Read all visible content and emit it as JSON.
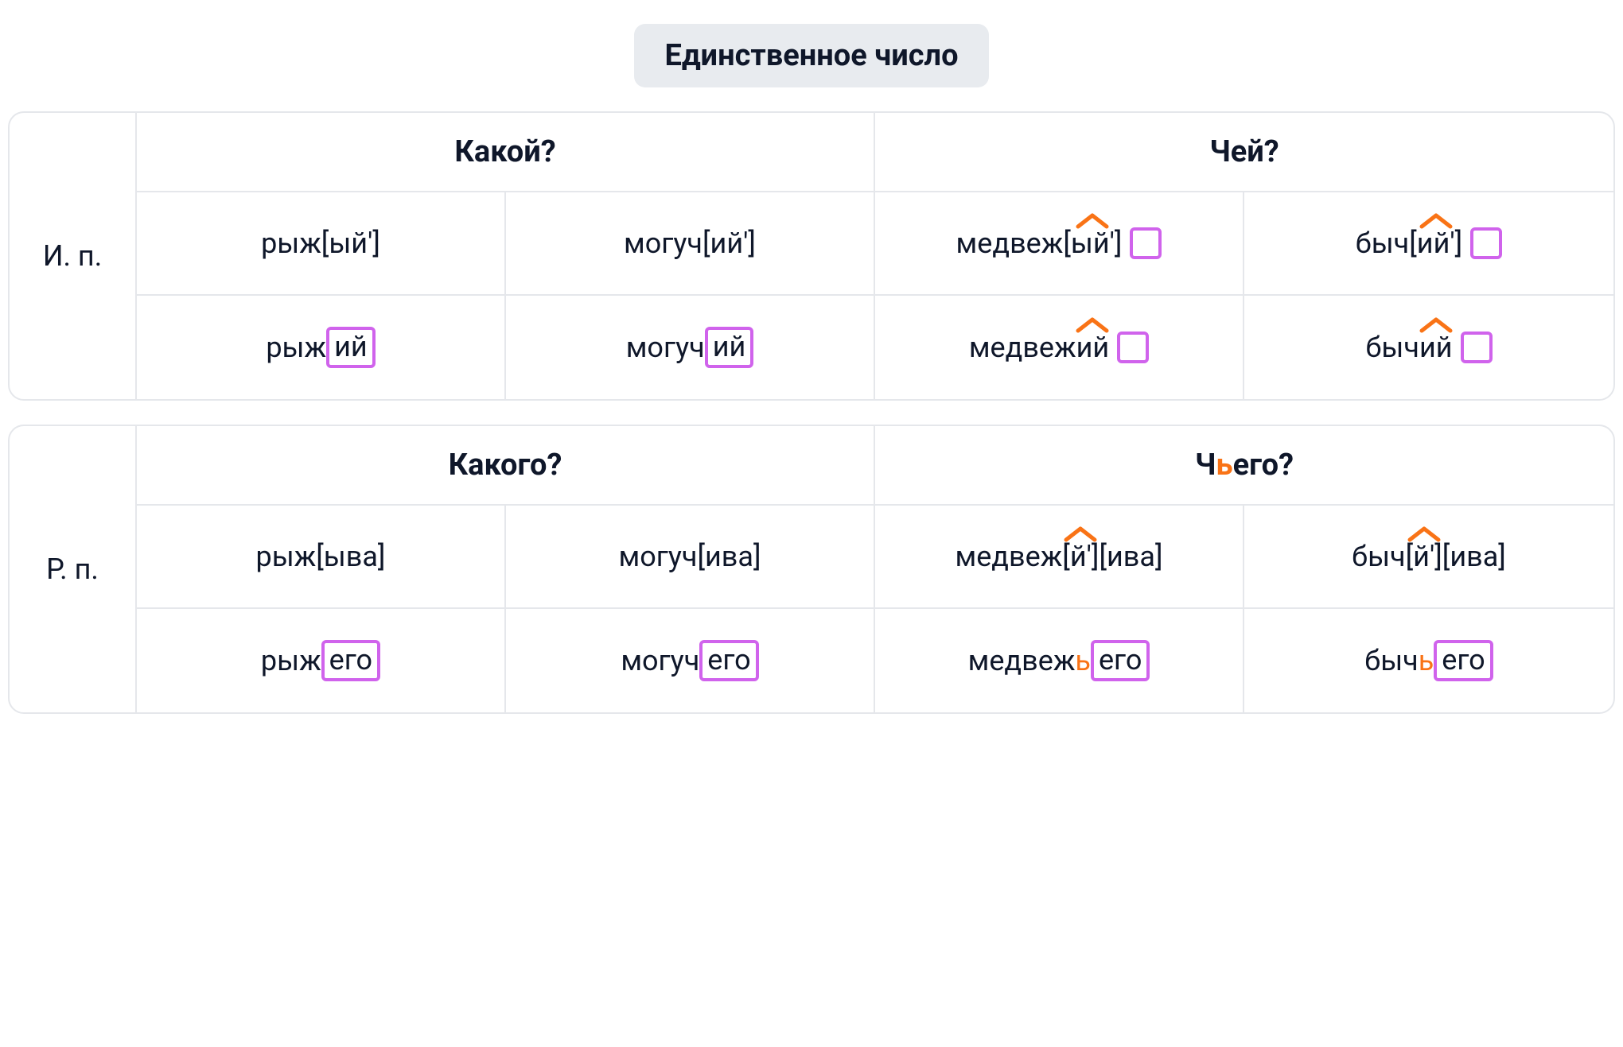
{
  "title": "Единственное число",
  "colors": {
    "background": "#ffffff",
    "text": "#0f172a",
    "pill_bg": "#e8ebef",
    "border": "#e5e7eb",
    "box": "#d063ec",
    "caret": "#f97316",
    "soft_sign": "#f97316"
  },
  "blocks": [
    {
      "case_label": "И. п.",
      "headers": [
        {
          "text": "Какой?",
          "soft": null
        },
        {
          "text_pre": "Ч",
          "text_post": "ей?",
          "soft": null,
          "full": "Чей?"
        }
      ],
      "rows": [
        [
          {
            "segments": [
              {
                "t": "рыж[ый']"
              }
            ],
            "caret_over": null,
            "zero_box": false
          },
          {
            "segments": [
              {
                "t": "могуч[ий']"
              }
            ],
            "caret_over": null,
            "zero_box": false
          },
          {
            "segments": [
              {
                "t": "медвеж["
              },
              {
                "t": "ый'",
                "caret": true
              },
              {
                "t": "]"
              }
            ],
            "zero_box": true
          },
          {
            "segments": [
              {
                "t": "быч["
              },
              {
                "t": "ий'",
                "caret": true
              },
              {
                "t": "]"
              }
            ],
            "zero_box": true
          }
        ],
        [
          {
            "segments": [
              {
                "t": "рыж"
              },
              {
                "t": "ий",
                "box": true
              }
            ],
            "zero_box": false
          },
          {
            "segments": [
              {
                "t": "могуч"
              },
              {
                "t": "ий",
                "box": true
              }
            ],
            "zero_box": false
          },
          {
            "segments": [
              {
                "t": "медвеж"
              },
              {
                "t": "ий",
                "caret": true
              }
            ],
            "zero_box": true
          },
          {
            "segments": [
              {
                "t": "быч"
              },
              {
                "t": "ий",
                "caret": true
              }
            ],
            "zero_box": true
          }
        ]
      ]
    },
    {
      "case_label": "Р. п.",
      "headers": [
        {
          "text": "Какого?",
          "soft": null
        },
        {
          "text_pre": "Ч",
          "soft": "ь",
          "text_post": "его?"
        }
      ],
      "rows": [
        [
          {
            "segments": [
              {
                "t": "рыж[ыва]"
              }
            ],
            "zero_box": false
          },
          {
            "segments": [
              {
                "t": "могуч[ива]"
              }
            ],
            "zero_box": false
          },
          {
            "segments": [
              {
                "t": "медвеж["
              },
              {
                "t": "й'",
                "caret": true
              },
              {
                "t": "][ива]"
              }
            ],
            "zero_box": false
          },
          {
            "segments": [
              {
                "t": "быч["
              },
              {
                "t": "й'",
                "caret": true
              },
              {
                "t": "][ива]"
              }
            ],
            "zero_box": false
          }
        ],
        [
          {
            "segments": [
              {
                "t": "рыж"
              },
              {
                "t": "его",
                "box": true
              }
            ],
            "zero_box": false
          },
          {
            "segments": [
              {
                "t": "могуч"
              },
              {
                "t": "его",
                "box": true
              }
            ],
            "zero_box": false
          },
          {
            "segments": [
              {
                "t": "медвеж"
              },
              {
                "t": "ь",
                "soft": true
              },
              {
                "t": "его",
                "box": true
              }
            ],
            "zero_box": false
          },
          {
            "segments": [
              {
                "t": "быч"
              },
              {
                "t": "ь",
                "soft": true
              },
              {
                "t": "его",
                "box": true
              }
            ],
            "zero_box": false
          }
        ]
      ]
    }
  ]
}
